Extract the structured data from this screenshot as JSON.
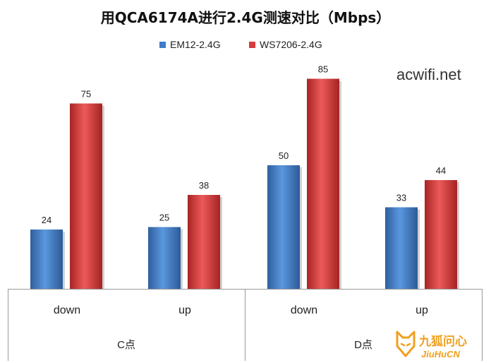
{
  "chart_data": {
    "type": "bar",
    "title": "用QCA6174A进行2.4G测速对比（Mbps）",
    "xlabel": "",
    "ylabel": "",
    "ylim": [
      0,
      100
    ],
    "grid": false,
    "legend_position": "top",
    "groups": [
      {
        "label": "C点",
        "categories": [
          "down",
          "up"
        ]
      },
      {
        "label": "D点",
        "categories": [
          "down",
          "up"
        ]
      }
    ],
    "categories": [
      "down",
      "up",
      "down",
      "up"
    ],
    "series": [
      {
        "name": "EM12-2.4G",
        "color": "#3F7CC8",
        "values": [
          24,
          25,
          50,
          33
        ]
      },
      {
        "name": "WS7206-2.4G",
        "color": "#D83B3B",
        "values": [
          75,
          38,
          85,
          44
        ]
      }
    ]
  },
  "watermark": {
    "text": "acwifi.net"
  },
  "logo": {
    "cn": "九狐问心",
    "en": "JiuHuCN",
    "color": "#F0A020"
  }
}
